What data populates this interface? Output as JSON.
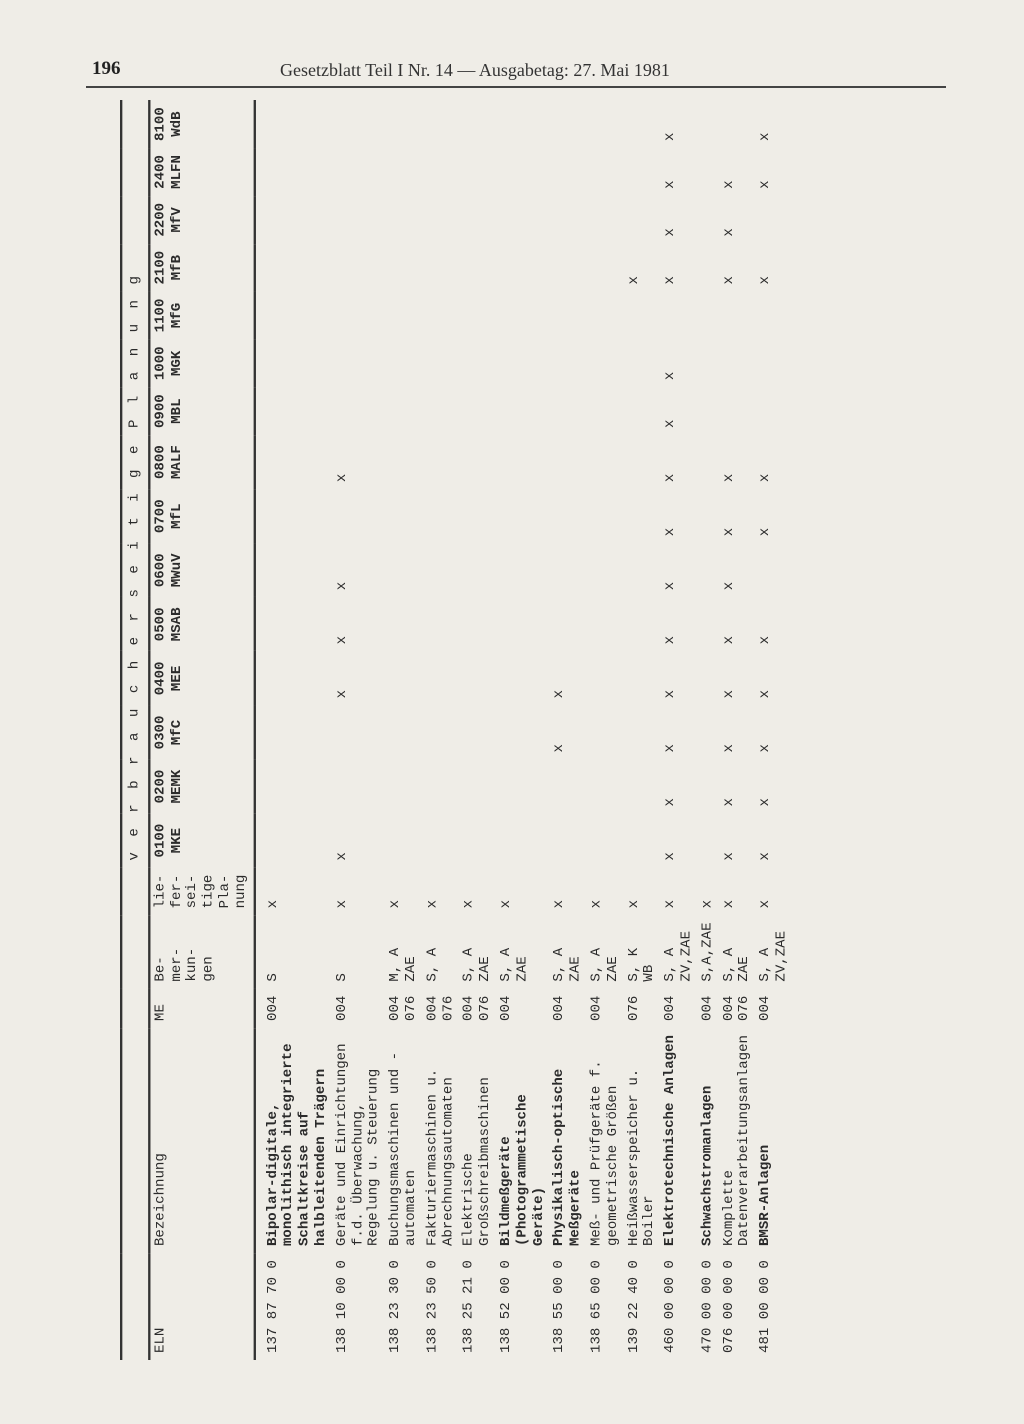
{
  "page_number": "196",
  "running_header": "Gesetzblatt Teil I Nr. 14 — Ausgabetag: 27. Mai 1981",
  "colors": {
    "paper": "#efede7",
    "ink": "#2b2b2b",
    "rule": "#333333"
  },
  "typography": {
    "header_family": "Georgia, serif",
    "table_family": "Courier New, monospace",
    "header_fontsize_pt": 13,
    "table_fontsize_pt": 9
  },
  "table": {
    "group_headers": {
      "left_blank": "",
      "verbraucher": "v e r b r a u c h e r s e i t i g e",
      "planung": "P l a n u n g"
    },
    "columns": [
      {
        "key": "eln",
        "line1": "ELN",
        "line2": ""
      },
      {
        "key": "bez",
        "line1": "Bezeichnung",
        "line2": ""
      },
      {
        "key": "me",
        "line1": "ME",
        "line2": ""
      },
      {
        "key": "bem",
        "line1": "Be-\nmer-\nkun-\ngen",
        "line2": ""
      },
      {
        "key": "lief",
        "line1": "lie-\nfer-\nsei-\ntige\nPla-\nnung",
        "line2": ""
      },
      {
        "key": "c0100",
        "line1": "0100",
        "line2": "MKE"
      },
      {
        "key": "c0200",
        "line1": "0200",
        "line2": "MEMK"
      },
      {
        "key": "c0300",
        "line1": "0300",
        "line2": "MfC"
      },
      {
        "key": "c0400",
        "line1": "0400",
        "line2": "MEE"
      },
      {
        "key": "c0500",
        "line1": "0500",
        "line2": "MSAB"
      },
      {
        "key": "c0600",
        "line1": "0600",
        "line2": "MWuV"
      },
      {
        "key": "c0700",
        "line1": "0700",
        "line2": "MfL"
      },
      {
        "key": "c0800",
        "line1": "0800",
        "line2": "MALF"
      },
      {
        "key": "c0900",
        "line1": "0900",
        "line2": "MBL"
      },
      {
        "key": "c1000",
        "line1": "1000",
        "line2": "MGK"
      },
      {
        "key": "c1100",
        "line1": "1100",
        "line2": "MfG"
      },
      {
        "key": "c2100",
        "line1": "2100",
        "line2": "MfB"
      },
      {
        "key": "c2200",
        "line1": "2200",
        "line2": "MfV"
      },
      {
        "key": "c2400",
        "line1": "2400",
        "line2": "MLFN"
      },
      {
        "key": "c8100",
        "line1": "8100",
        "line2": "WdB"
      }
    ],
    "rows": [
      {
        "eln": "137 87 70 0",
        "bez": "Bipolar-digitale, monolithisch integrierte Schaltkreise auf halbleitenden Trägern",
        "me": "004",
        "bem": "S",
        "lief": "x",
        "bold": true,
        "x": {}
      },
      {
        "eln": "138 10 00 0",
        "bez": "Geräte und Einrichtungen f.d. Überwachung, Regelung u. Steuerung",
        "me": "004",
        "bem": "S",
        "lief": "x",
        "x": {
          "c0100": "x",
          "c0400": "x",
          "c0500": "x",
          "c0600": "x",
          "c0800": "x"
        }
      },
      {
        "eln": "138 23 30 0",
        "bez": "Buchungsmaschinen und -automaten",
        "me": "004\n076",
        "bem": "M, A\nZAE",
        "lief": "x",
        "x": {}
      },
      {
        "eln": "138 23 50 0",
        "bez": "Fakturiermaschinen u. Abrechnungsautomaten",
        "me": "004\n076",
        "bem": "S, A",
        "lief": "x",
        "x": {}
      },
      {
        "eln": "138 25 21 0",
        "bez": "Elektrische Großschreibmaschinen",
        "me": "004\n076",
        "bem": "S, A\nZAE",
        "lief": "x",
        "x": {}
      },
      {
        "eln": "138 52 00 0",
        "bez": "Bildmeßgeräte (Photogrammetische Geräte)",
        "me": "004",
        "bem": "S, A\nZAE",
        "lief": "x",
        "bold": true,
        "x": {}
      },
      {
        "eln": "138 55 00 0",
        "bez": "Physikalisch-optische Meßgeräte",
        "me": "004",
        "bem": "S, A\nZAE",
        "lief": "x",
        "bold": true,
        "x": {
          "c0300": "x",
          "c0400": "x"
        }
      },
      {
        "eln": "138 65 00 0",
        "bez": "Meß- und Prüfgeräte f. geometrische Größen",
        "me": "004",
        "bem": "S, A\nZAE",
        "lief": "x",
        "x": {}
      },
      {
        "eln": "139 22 40 0",
        "bez": "Heißwasserspeicher u. Boiler",
        "me": "076",
        "bem": "S, K\nWB",
        "lief": "x",
        "x": {
          "c2100": "x"
        }
      },
      {
        "eln": "460 00 00 0",
        "bez": "Elektrotechnische Anlagen",
        "me": "004",
        "bem": "S, A\nZV,ZAE",
        "lief": "x",
        "bold": true,
        "x": {
          "c0100": "x",
          "c0200": "x",
          "c0300": "x",
          "c0400": "x",
          "c0500": "x",
          "c0600": "x",
          "c0700": "x",
          "c0800": "x",
          "c0900": "x",
          "c1000": "x",
          "c2100": "x",
          "c2200": "x",
          "c2400": "x",
          "c8100": "x"
        }
      },
      {
        "eln": "470 00 00 0",
        "bez": "Schwachstromanlagen",
        "me": "004",
        "bem": "S,A,ZAE",
        "lief": "x",
        "bold": true,
        "x": {}
      },
      {
        "eln": "076 00 00 0",
        "bez": "Komplette Datenverarbeitungsanlagen",
        "me": "004\n076",
        "bem": "S, A\nZAE",
        "lief": "x",
        "x": {
          "c0100": "x",
          "c0200": "x",
          "c0300": "x",
          "c0400": "x",
          "c0500": "x",
          "c0600": "x",
          "c0700": "x",
          "c0800": "x",
          "c2100": "x",
          "c2200": "x",
          "c2400": "x"
        }
      },
      {
        "eln": "481 00 00 0",
        "bez": "BMSR-Anlagen",
        "me": "004",
        "bem": "S, A\nZV,ZAE",
        "lief": "x",
        "bold": true,
        "x": {
          "c0100": "x",
          "c0200": "x",
          "c0300": "x",
          "c0400": "x",
          "c0500": "x",
          "c0700": "x",
          "c0800": "x",
          "c2100": "x",
          "c2400": "x",
          "c8100": "x"
        }
      }
    ]
  }
}
